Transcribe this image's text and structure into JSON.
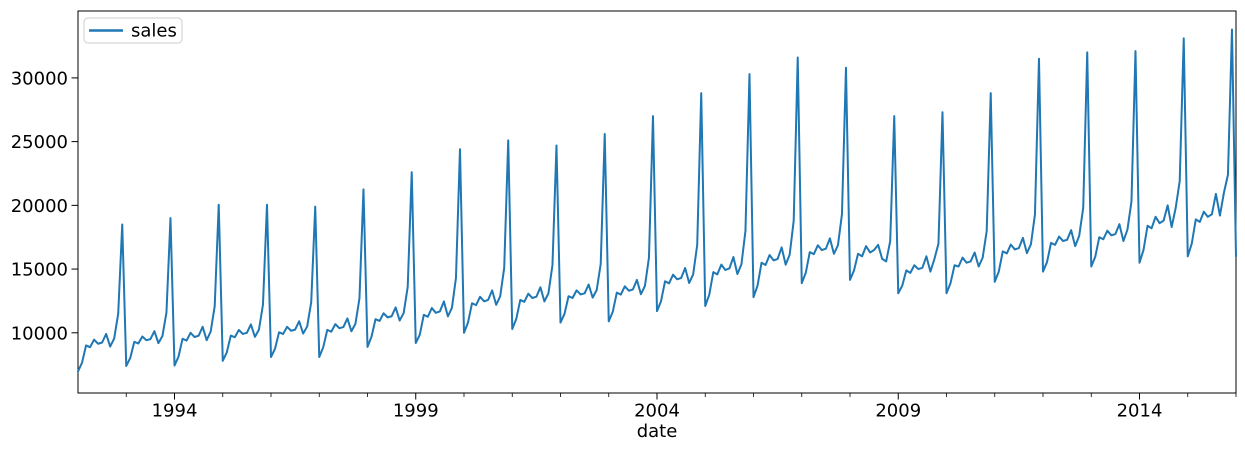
{
  "chart_data": {
    "type": "line",
    "title": "",
    "xlabel": "date",
    "ylabel": "",
    "legend": {
      "position": "upper left",
      "entries": [
        "sales"
      ]
    },
    "grid": false,
    "x_unit": "monthly",
    "x_start": "1992-01",
    "x_end": "2016-01",
    "xlim": [
      1992.0,
      2016.0
    ],
    "ylim": [
      5277,
      35248
    ],
    "x_major_ticks": [
      1994,
      1999,
      2004,
      2009,
      2014
    ],
    "x_minor_tick_years": [
      1993,
      1995,
      1996,
      1997,
      1998,
      2000,
      2001,
      2002,
      2003,
      2005,
      2006,
      2007,
      2008,
      2010,
      2011,
      2012,
      2013,
      2015,
      2016
    ],
    "y_ticks": [
      10000,
      15000,
      20000,
      25000,
      30000
    ],
    "series": [
      {
        "name": "sales",
        "color": "#1f77b4",
        "values": [
          6970,
          7650,
          9010,
          8870,
          9460,
          9140,
          9240,
          9910,
          8920,
          9560,
          11500,
          18500,
          7400,
          8030,
          9290,
          9160,
          9710,
          9420,
          9500,
          10130,
          9190,
          9750,
          11600,
          19000,
          7430,
          8130,
          9530,
          9390,
          10000,
          9670,
          9770,
          10470,
          9420,
          10100,
          12100,
          20050,
          7800,
          8460,
          9780,
          9650,
          10220,
          9910,
          10000,
          10660,
          9680,
          10250,
          12200,
          20050,
          8100,
          8750,
          10040,
          9910,
          10470,
          10160,
          10250,
          10900,
          9940,
          10500,
          12400,
          19900,
          8100,
          8880,
          10230,
          10090,
          10680,
          10360,
          10450,
          11130,
          10120,
          10710,
          12700,
          21250,
          8900,
          9690,
          11070,
          10930,
          11530,
          11210,
          11300,
          11990,
          10960,
          11560,
          13600,
          22600,
          9200,
          9840,
          11410,
          11260,
          11940,
          11570,
          11680,
          12460,
          11290,
          11970,
          14300,
          24400,
          10000,
          10810,
          12320,
          12170,
          12830,
          12470,
          12580,
          13330,
          12200,
          12860,
          15100,
          25100,
          10300,
          11090,
          12580,
          12430,
          13070,
          12730,
          12830,
          13570,
          12460,
          13100,
          15300,
          24700,
          10800,
          11490,
          12870,
          12730,
          13330,
          13010,
          13100,
          13790,
          12760,
          13360,
          15400,
          25600,
          10900,
          11650,
          13150,
          13000,
          13650,
          13300,
          13400,
          14150,
          13030,
          13680,
          15900,
          27000,
          11700,
          12480,
          14040,
          13880,
          14560,
          14200,
          14300,
          15080,
          13910,
          14590,
          16900,
          28800,
          12100,
          12990,
          14760,
          14580,
          15350,
          14930,
          15050,
          15940,
          14610,
          15380,
          18000,
          30300,
          12800,
          13700,
          15500,
          15320,
          16100,
          15680,
          15800,
          16700,
          15350,
          16130,
          18800,
          31600,
          13900,
          14710,
          16330,
          16170,
          16870,
          16490,
          16600,
          17410,
          16200,
          16870,
          19300,
          30800,
          14150,
          14900,
          16200,
          16000,
          16800,
          16300,
          16500,
          16900,
          15800,
          15600,
          17200,
          27000,
          13100,
          13700,
          14900,
          14700,
          15300,
          15000,
          15100,
          16000,
          14800,
          15800,
          17000,
          27300,
          13100,
          13900,
          15300,
          15200,
          15900,
          15500,
          15600,
          16300,
          15200,
          15900,
          18000,
          28800,
          14000,
          14800,
          16390,
          16230,
          16920,
          16540,
          16650,
          17450,
          16250,
          16950,
          19300,
          31500,
          14800,
          15550,
          17050,
          16900,
          17550,
          17200,
          17300,
          18050,
          16800,
          17600,
          19800,
          32000,
          15200,
          15970,
          17500,
          17340,
          18010,
          17650,
          17750,
          18520,
          17200,
          18100,
          20300,
          32100,
          15500,
          16500,
          18400,
          18200,
          19100,
          18600,
          18800,
          20000,
          18300,
          19800,
          21900,
          33100,
          16000,
          17000,
          18900,
          18700,
          19500,
          19100,
          19300,
          20900,
          19200,
          21000,
          22400,
          33800,
          16000
        ]
      }
    ]
  },
  "colors": {
    "line": "#1f77b4",
    "axis": "#000000",
    "legend_border": "#cccccc",
    "background": "#ffffff"
  }
}
